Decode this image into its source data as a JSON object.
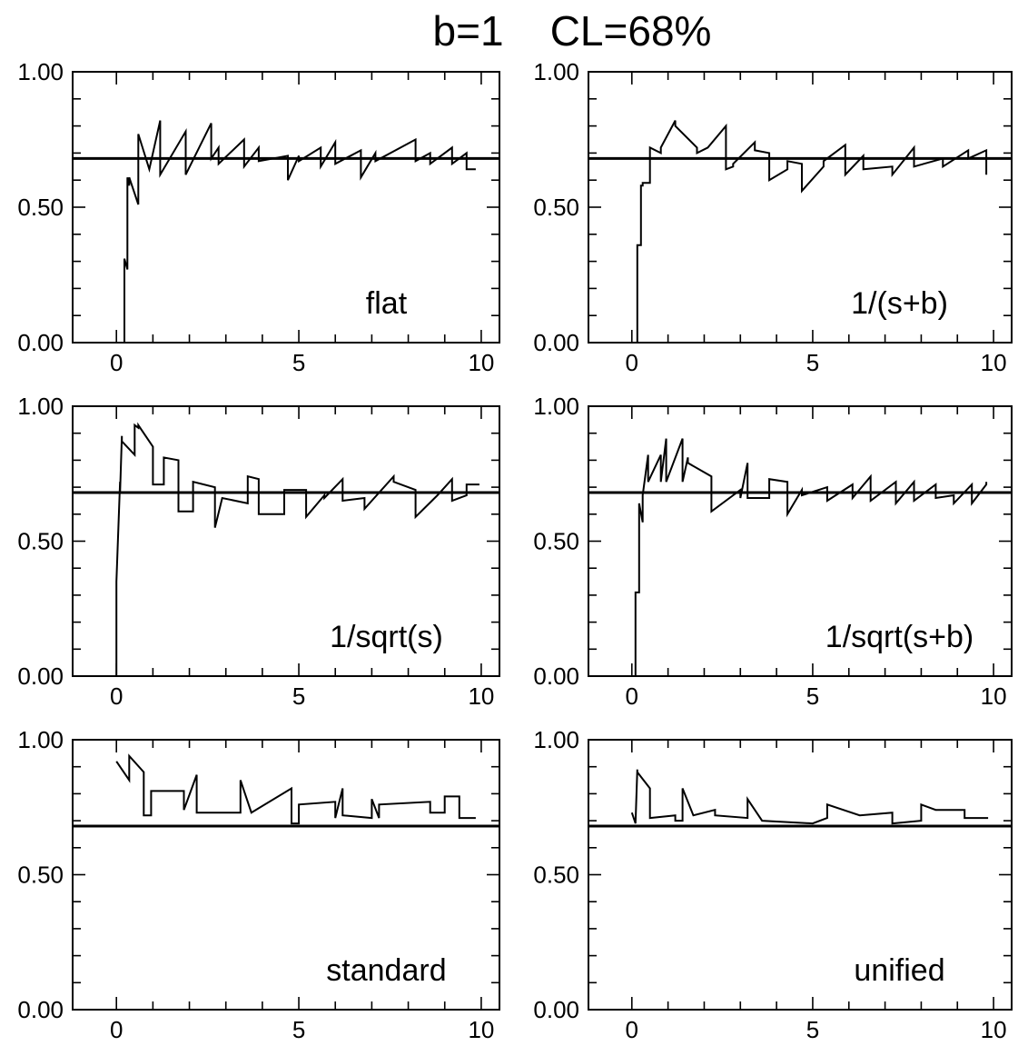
{
  "title": "b=1    CL=68%",
  "chart_data": [
    {
      "type": "line",
      "label": "flat",
      "xlim": [
        -1.2,
        10.5
      ],
      "ylim": [
        0,
        1
      ],
      "xticks": [
        "0",
        "5",
        "10"
      ],
      "yticks": [
        "0.00",
        "0.50",
        "1.00"
      ],
      "reference_line": 0.68,
      "x": [
        0.22,
        0.22,
        0.3,
        0.3,
        0.35,
        0.35,
        0.6,
        0.6,
        0.9,
        0.9,
        1.2,
        1.2,
        1.9,
        1.9,
        2.6,
        2.6,
        2.8,
        2.8,
        3.5,
        3.5,
        3.9,
        3.9,
        4.7,
        4.7,
        5.0,
        5.0,
        5.6,
        5.6,
        6.0,
        6.0,
        6.7,
        6.7,
        7.1,
        7.1,
        8.2,
        8.2,
        8.6,
        8.6,
        9.2,
        9.2,
        9.6,
        9.6,
        9.85
      ],
      "y": [
        0.0,
        0.31,
        0.27,
        0.61,
        0.58,
        0.61,
        0.51,
        0.77,
        0.64,
        0.64,
        0.82,
        0.62,
        0.78,
        0.62,
        0.81,
        0.68,
        0.72,
        0.66,
        0.75,
        0.65,
        0.72,
        0.67,
        0.69,
        0.6,
        0.69,
        0.67,
        0.72,
        0.65,
        0.74,
        0.66,
        0.71,
        0.61,
        0.7,
        0.67,
        0.75,
        0.67,
        0.7,
        0.66,
        0.72,
        0.66,
        0.7,
        0.64,
        0.64
      ]
    },
    {
      "type": "line",
      "label": "1/(s+b)",
      "xlim": [
        -1.2,
        10.5
      ],
      "ylim": [
        0,
        1
      ],
      "xticks": [
        "0",
        "5",
        "10"
      ],
      "yticks": [
        "0.00",
        "0.50",
        "1.00"
      ],
      "reference_line": 0.68,
      "x": [
        0.15,
        0.15,
        0.25,
        0.25,
        0.3,
        0.3,
        0.5,
        0.5,
        0.8,
        0.8,
        1.2,
        1.2,
        1.8,
        1.8,
        2.1,
        2.1,
        2.6,
        2.6,
        2.8,
        2.8,
        3.4,
        3.4,
        3.8,
        3.8,
        4.3,
        4.3,
        4.7,
        4.7,
        5.3,
        5.3,
        5.9,
        5.9,
        6.4,
        6.4,
        7.2,
        7.2,
        7.8,
        7.8,
        8.6,
        8.6,
        9.3,
        9.3,
        9.8,
        9.8
      ],
      "y": [
        0.0,
        0.36,
        0.36,
        0.58,
        0.58,
        0.59,
        0.59,
        0.72,
        0.7,
        0.72,
        0.82,
        0.8,
        0.72,
        0.7,
        0.72,
        0.72,
        0.8,
        0.64,
        0.65,
        0.66,
        0.74,
        0.71,
        0.7,
        0.6,
        0.64,
        0.67,
        0.66,
        0.56,
        0.65,
        0.67,
        0.73,
        0.62,
        0.69,
        0.64,
        0.65,
        0.62,
        0.72,
        0.65,
        0.68,
        0.65,
        0.71,
        0.68,
        0.71,
        0.62
      ]
    },
    {
      "type": "line",
      "label": "1/sqrt(s)",
      "xlim": [
        -1.2,
        10.5
      ],
      "ylim": [
        0,
        1
      ],
      "xticks": [
        "0",
        "5",
        "10"
      ],
      "yticks": [
        "0.00",
        "0.50",
        "1.00"
      ],
      "reference_line": 0.68,
      "x": [
        0.0,
        0.0,
        0.1,
        0.1,
        0.15,
        0.15,
        0.5,
        0.5,
        0.6,
        0.6,
        1.0,
        1.0,
        1.3,
        1.3,
        1.7,
        1.7,
        2.1,
        2.1,
        2.7,
        2.7,
        2.9,
        2.9,
        3.6,
        3.6,
        3.9,
        3.9,
        4.6,
        4.6,
        5.2,
        5.2,
        5.7,
        5.7,
        6.2,
        6.2,
        6.8,
        6.8,
        7.6,
        7.6,
        8.2,
        8.2,
        8.8,
        8.8,
        9.2,
        9.2,
        9.6,
        9.6,
        9.95
      ],
      "y": [
        0.0,
        0.35,
        0.72,
        0.68,
        0.89,
        0.87,
        0.82,
        0.93,
        0.92,
        0.93,
        0.85,
        0.71,
        0.71,
        0.81,
        0.8,
        0.61,
        0.61,
        0.72,
        0.7,
        0.55,
        0.66,
        0.66,
        0.64,
        0.74,
        0.73,
        0.6,
        0.6,
        0.69,
        0.69,
        0.59,
        0.67,
        0.66,
        0.73,
        0.65,
        0.66,
        0.62,
        0.74,
        0.72,
        0.69,
        0.59,
        0.67,
        0.67,
        0.73,
        0.65,
        0.67,
        0.71,
        0.71
      ]
    },
    {
      "type": "line",
      "label": "1/sqrt(s+b)",
      "xlim": [
        -1.2,
        10.5
      ],
      "ylim": [
        0,
        1
      ],
      "xticks": [
        "0",
        "5",
        "10"
      ],
      "yticks": [
        "0.00",
        "0.50",
        "1.00"
      ],
      "reference_line": 0.68,
      "x": [
        0.1,
        0.1,
        0.2,
        0.2,
        0.3,
        0.3,
        0.45,
        0.45,
        0.8,
        0.8,
        0.95,
        0.95,
        1.4,
        1.4,
        1.55,
        1.55,
        2.2,
        2.2,
        3.0,
        3.0,
        3.2,
        3.2,
        3.8,
        3.8,
        4.3,
        4.3,
        4.7,
        4.7,
        5.4,
        5.4,
        6.1,
        6.1,
        6.6,
        6.6,
        7.3,
        7.3,
        7.8,
        7.8,
        8.4,
        8.4,
        8.9,
        8.9,
        9.4,
        9.4,
        9.8,
        9.8
      ],
      "y": [
        0.0,
        0.31,
        0.31,
        0.64,
        0.57,
        0.67,
        0.82,
        0.72,
        0.82,
        0.72,
        0.88,
        0.72,
        0.88,
        0.72,
        0.81,
        0.79,
        0.74,
        0.61,
        0.69,
        0.66,
        0.79,
        0.66,
        0.66,
        0.73,
        0.72,
        0.6,
        0.69,
        0.67,
        0.7,
        0.65,
        0.71,
        0.66,
        0.74,
        0.65,
        0.72,
        0.64,
        0.72,
        0.65,
        0.71,
        0.66,
        0.67,
        0.64,
        0.71,
        0.64,
        0.71,
        0.72
      ]
    },
    {
      "type": "line",
      "label": "standard",
      "xlim": [
        -1.2,
        10.5
      ],
      "ylim": [
        0,
        1
      ],
      "xticks": [
        "0",
        "5",
        "10"
      ],
      "yticks": [
        "0.00",
        "0.50",
        "1.00"
      ],
      "reference_line": 0.68,
      "x": [
        0.0,
        0.35,
        0.35,
        0.75,
        0.75,
        0.95,
        0.95,
        1.85,
        1.85,
        2.2,
        2.2,
        3.4,
        3.4,
        3.7,
        3.7,
        4.8,
        4.8,
        5.0,
        5.0,
        6.0,
        6.0,
        6.2,
        6.2,
        7.0,
        7.0,
        7.2,
        7.2,
        8.6,
        8.6,
        9.0,
        9.0,
        9.4,
        9.4,
        9.85
      ],
      "y": [
        0.92,
        0.85,
        0.94,
        0.88,
        0.72,
        0.72,
        0.81,
        0.81,
        0.74,
        0.87,
        0.73,
        0.73,
        0.85,
        0.73,
        0.73,
        0.82,
        0.69,
        0.69,
        0.76,
        0.77,
        0.71,
        0.82,
        0.72,
        0.71,
        0.78,
        0.71,
        0.76,
        0.77,
        0.73,
        0.73,
        0.79,
        0.79,
        0.71,
        0.71
      ]
    },
    {
      "type": "line",
      "label": "unified",
      "xlim": [
        -1.2,
        10.5
      ],
      "ylim": [
        0,
        1
      ],
      "xticks": [
        "0",
        "5",
        "10"
      ],
      "yticks": [
        "0.00",
        "0.50",
        "1.00"
      ],
      "reference_line": 0.68,
      "x": [
        0.0,
        0.1,
        0.1,
        0.15,
        0.15,
        0.5,
        0.5,
        1.2,
        1.2,
        1.4,
        1.4,
        1.7,
        1.7,
        2.3,
        2.3,
        3.2,
        3.2,
        3.6,
        3.6,
        5.0,
        5.0,
        5.4,
        5.4,
        6.3,
        6.3,
        7.2,
        7.2,
        8.0,
        8.0,
        8.4,
        8.4,
        9.2,
        9.2,
        9.85
      ],
      "y": [
        0.73,
        0.69,
        0.69,
        0.89,
        0.88,
        0.82,
        0.71,
        0.72,
        0.7,
        0.7,
        0.82,
        0.72,
        0.72,
        0.74,
        0.72,
        0.71,
        0.78,
        0.7,
        0.7,
        0.69,
        0.69,
        0.71,
        0.76,
        0.72,
        0.72,
        0.73,
        0.69,
        0.7,
        0.76,
        0.74,
        0.74,
        0.74,
        0.71,
        0.71
      ]
    }
  ]
}
